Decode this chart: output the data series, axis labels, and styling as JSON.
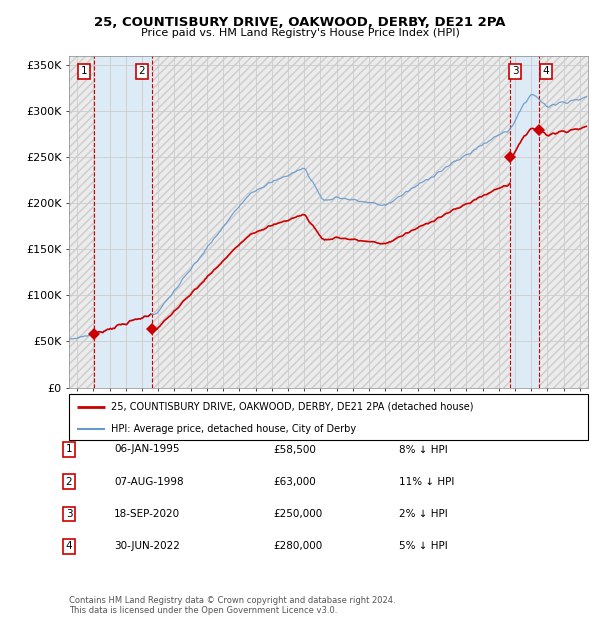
{
  "title": "25, COUNTISBURY DRIVE, OAKWOOD, DERBY, DE21 2PA",
  "subtitle": "Price paid vs. HM Land Registry's House Price Index (HPI)",
  "ylim": [
    0,
    360000
  ],
  "yticks": [
    0,
    50000,
    100000,
    150000,
    200000,
    250000,
    300000,
    350000
  ],
  "ytick_labels": [
    "£0",
    "£50K",
    "£100K",
    "£150K",
    "£200K",
    "£250K",
    "£300K",
    "£350K"
  ],
  "xlim_start": 1993.5,
  "xlim_end": 2025.5,
  "purchases": [
    {
      "date_year": 1995.03,
      "price": 58500,
      "label": "1"
    },
    {
      "date_year": 1998.6,
      "price": 63000,
      "label": "2"
    },
    {
      "date_year": 2020.72,
      "price": 250000,
      "label": "3"
    },
    {
      "date_year": 2022.49,
      "price": 280000,
      "label": "4"
    }
  ],
  "purchase_color": "#cc0000",
  "hpi_color": "#6699cc",
  "legend_property_label": "25, COUNTISBURY DRIVE, OAKWOOD, DERBY, DE21 2PA (detached house)",
  "legend_hpi_label": "HPI: Average price, detached house, City of Derby",
  "table_rows": [
    {
      "num": "1",
      "date": "06-JAN-1995",
      "price": "£58,500",
      "hpi": "8% ↓ HPI"
    },
    {
      "num": "2",
      "date": "07-AUG-1998",
      "price": "£63,000",
      "hpi": "11% ↓ HPI"
    },
    {
      "num": "3",
      "date": "18-SEP-2020",
      "price": "£250,000",
      "hpi": "2% ↓ HPI"
    },
    {
      "num": "4",
      "date": "30-JUN-2022",
      "price": "£280,000",
      "hpi": "5% ↓ HPI"
    }
  ],
  "footnote": "Contains HM Land Registry data © Crown copyright and database right 2024.\nThis data is licensed under the Open Government Licence v3.0.",
  "shade_regions": [
    {
      "start": 1993.5,
      "end": 1995.03,
      "hatch": true
    },
    {
      "start": 1995.03,
      "end": 1998.6,
      "hatch": false
    },
    {
      "start": 1998.6,
      "end": 2020.72,
      "hatch": true
    },
    {
      "start": 2020.72,
      "end": 2022.49,
      "hatch": false
    },
    {
      "start": 2022.49,
      "end": 2025.5,
      "hatch": true
    }
  ],
  "hatch_color": "#cccccc",
  "lightblue_color": "#ddeeff",
  "grid_color": "#cccccc",
  "vline_color": "#cc0000"
}
